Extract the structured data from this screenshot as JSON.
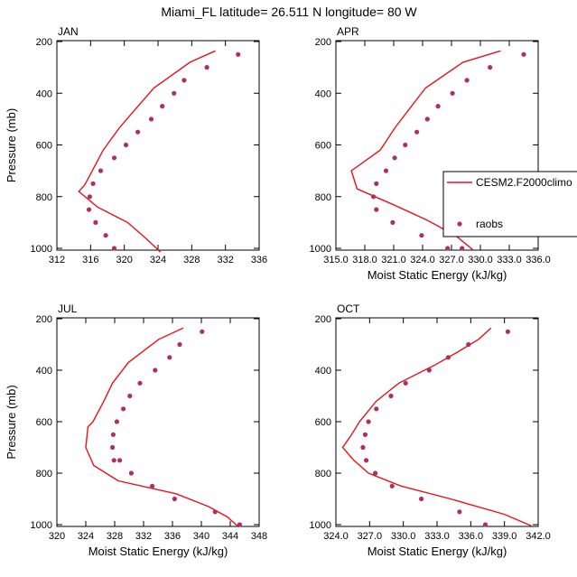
{
  "figure_title": "Miami_FL  latitude= 26.511 N longitude= 80 W",
  "colors": {
    "model_line": "#e8121b",
    "obs_marker": "#b0305c",
    "axis": "#000000"
  },
  "legend": {
    "model_label": "CESM2.F2000climo",
    "obs_label": "raobs",
    "placement": "right of APR panel"
  },
  "chart_data": [
    {
      "type": "line",
      "panel_label": "JAN",
      "xlabel": "",
      "ylabel": "Pressure (mb)",
      "xlim": [
        312,
        336
      ],
      "ylim": [
        1000,
        200
      ],
      "xticks": [
        "312",
        "316",
        "320",
        "324",
        "328",
        "332",
        "336"
      ],
      "yticks": [
        "200",
        "400",
        "600",
        "800",
        "1000"
      ],
      "series": [
        {
          "name": "CESM2.F2000climo",
          "kind": "line",
          "x": [
            330.8,
            327.8,
            323.5,
            319.5,
            317.5,
            316.2,
            315.3,
            314.6,
            316.8,
            320.4,
            322.5,
            324.3
          ],
          "y": [
            236,
            280,
            380,
            530,
            620,
            700,
            755,
            780,
            840,
            900,
            960,
            1015
          ]
        },
        {
          "name": "raobs",
          "kind": "markers",
          "x": [
            333.5,
            329.8,
            327.1,
            325.9,
            324.5,
            323.2,
            321.6,
            320.2,
            318.8,
            317.2,
            316.3,
            315.9,
            315.8,
            316.6,
            317.8,
            318.8
          ],
          "y": [
            250,
            300,
            350,
            400,
            450,
            500,
            550,
            600,
            650,
            700,
            750,
            800,
            850,
            900,
            950,
            1000
          ]
        }
      ]
    },
    {
      "type": "line",
      "panel_label": "APR",
      "xlabel": "Moist Static Energy (kJ/kg)",
      "ylabel": "",
      "xlim": [
        315,
        336
      ],
      "ylim": [
        1000,
        200
      ],
      "xticks": [
        "315.0",
        "318.0",
        "321.0",
        "324.0",
        "327.0",
        "330.0",
        "333.0",
        "336.0"
      ],
      "yticks": [
        "200",
        "400",
        "600",
        "800",
        "1000"
      ],
      "series": [
        {
          "name": "CESM2.F2000climo",
          "kind": "line",
          "x": [
            332.1,
            328.2,
            324.3,
            321.2,
            319.6,
            316.6,
            317.2,
            320.9,
            324.4,
            327.4,
            329.2
          ],
          "y": [
            236,
            280,
            380,
            530,
            620,
            700,
            770,
            830,
            890,
            950,
            1005
          ]
        },
        {
          "name": "raobs",
          "kind": "markers",
          "x": [
            334.5,
            331.0,
            328.6,
            327.1,
            325.6,
            324.5,
            323.4,
            322.2,
            321.1,
            320.2,
            319.2,
            318.9,
            319.2,
            320.9,
            323.9,
            326.6,
            328.1
          ],
          "y": [
            250,
            300,
            350,
            400,
            450,
            500,
            550,
            600,
            650,
            700,
            750,
            800,
            850,
            900,
            950,
            1000,
            1000
          ]
        }
      ]
    },
    {
      "type": "line",
      "panel_label": "JUL",
      "xlabel": "Moist Static Energy (kJ/kg)",
      "ylabel": "Pressure (mb)",
      "xlim": [
        320,
        348
      ],
      "ylim": [
        1000,
        200
      ],
      "xticks": [
        "320",
        "324",
        "328",
        "332",
        "336",
        "340",
        "344",
        "348"
      ],
      "yticks": [
        "200",
        "400",
        "600",
        "800",
        "1000"
      ],
      "series": [
        {
          "name": "CESM2.F2000climo",
          "kind": "line",
          "x": [
            337.5,
            334.1,
            329.9,
            327.7,
            326.5,
            325.0,
            324.3,
            324.0,
            325.1,
            328.5,
            336.5,
            341.0,
            343.6,
            345.2
          ],
          "y": [
            236,
            280,
            370,
            450,
            520,
            600,
            620,
            700,
            770,
            830,
            880,
            930,
            970,
            1010
          ]
        },
        {
          "name": "raobs",
          "kind": "markers",
          "x": [
            340.1,
            337.0,
            335.6,
            333.6,
            331.5,
            330.1,
            329.2,
            328.3,
            327.8,
            327.7,
            327.9,
            328.7,
            330.3,
            333.2,
            336.3,
            341.9,
            345.3
          ],
          "y": [
            250,
            300,
            350,
            400,
            450,
            500,
            550,
            600,
            650,
            700,
            750,
            750,
            800,
            850,
            900,
            950,
            1000
          ]
        }
      ]
    },
    {
      "type": "line",
      "panel_label": "OCT",
      "xlabel": "Moist Static Energy (kJ/kg)",
      "ylabel": "",
      "xlim": [
        324,
        342
      ],
      "ylim": [
        1000,
        200
      ],
      "xticks": [
        "324.0",
        "327.0",
        "330.0",
        "333.0",
        "336.0",
        "339.0",
        "342.0"
      ],
      "yticks": [
        "200",
        "400",
        "600",
        "800",
        "1000"
      ],
      "series": [
        {
          "name": "CESM2.F2000climo",
          "kind": "line",
          "x": [
            337.8,
            336.7,
            334.8,
            332.8,
            329.6,
            327.6,
            326.1,
            325.4,
            324.6,
            325.6,
            326.9,
            329.8,
            334.2,
            339.0,
            341.4
          ],
          "y": [
            236,
            280,
            330,
            380,
            450,
            520,
            600,
            650,
            700,
            750,
            800,
            850,
            900,
            960,
            1005
          ]
        },
        {
          "name": "raobs",
          "kind": "markers",
          "x": [
            339.3,
            335.8,
            334.0,
            332.3,
            330.2,
            328.9,
            327.6,
            326.9,
            326.6,
            326.4,
            326.7,
            327.5,
            329.0,
            331.6,
            335.0,
            337.3
          ],
          "y": [
            250,
            300,
            350,
            400,
            450,
            500,
            550,
            600,
            650,
            700,
            750,
            800,
            850,
            900,
            950,
            1000
          ]
        }
      ]
    }
  ]
}
